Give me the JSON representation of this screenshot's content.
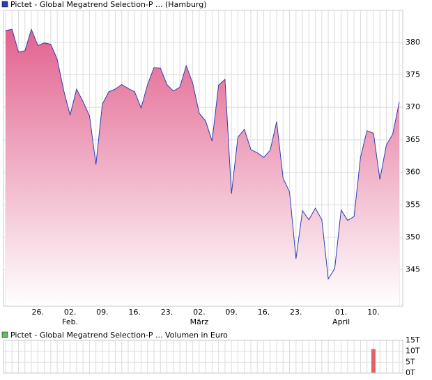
{
  "chart_data": [
    {
      "type": "area",
      "legend": "Pictet - Global Megatrend Selection-P ... (Hamburg)",
      "color": "#2b3fb5",
      "fill_top": "#e2628f",
      "fill_bottom": "#ffffff",
      "categories": [
        null,
        null,
        null,
        null,
        null,
        "26.",
        null,
        null,
        null,
        null,
        "02.",
        null,
        null,
        null,
        null,
        "09.",
        null,
        null,
        null,
        null,
        "16.",
        null,
        null,
        null,
        null,
        "23.",
        null,
        null,
        null,
        null,
        "02.",
        null,
        null,
        null,
        null,
        "09.",
        null,
        null,
        null,
        null,
        "16.",
        null,
        null,
        null,
        null,
        "23.",
        null,
        null,
        null,
        null,
        null,
        null,
        "01.",
        null,
        null,
        null,
        null,
        "10.",
        null,
        null,
        null,
        null
      ],
      "months": [
        null,
        null,
        null,
        null,
        null,
        null,
        null,
        null,
        null,
        null,
        "Feb.",
        null,
        null,
        null,
        null,
        null,
        null,
        null,
        null,
        null,
        null,
        null,
        null,
        null,
        null,
        null,
        null,
        null,
        null,
        null,
        "März",
        null,
        null,
        null,
        null,
        null,
        null,
        null,
        null,
        null,
        null,
        null,
        null,
        null,
        null,
        null,
        null,
        null,
        null,
        null,
        null,
        null,
        "April",
        null,
        null,
        null,
        null,
        null,
        null,
        null,
        null,
        null
      ],
      "values": [
        381.8,
        382,
        378.5,
        378.7,
        382,
        379.5,
        379.9,
        379.7,
        377.4,
        372.6,
        368.8,
        372.8,
        370.9,
        368.7,
        361.2,
        370.5,
        372.4,
        372.8,
        373.5,
        372.9,
        372.4,
        369.9,
        373.5,
        376.1,
        376,
        373.5,
        372.5,
        373.1,
        376.4,
        373.7,
        369.1,
        367.9,
        364.8,
        373.4,
        374.3,
        356.7,
        365.4,
        366.6,
        363.5,
        363,
        362.3,
        363.4,
        367.8,
        359.1,
        357,
        346.7,
        354.1,
        352.7,
        354.5,
        352.7,
        343.6,
        345.2,
        354.2,
        352.6,
        353.2,
        362.3,
        366.4,
        366,
        358.9,
        364.2,
        365.9,
        370.8
      ],
      "ylim": [
        339.4,
        384.9
      ],
      "yticks": [
        345,
        350,
        355,
        360,
        365,
        370,
        375,
        380
      ],
      "grid": true
    },
    {
      "type": "bar",
      "legend": "Pictet - Global Megatrend Selection-P ... Volumen in Euro",
      "legend_color": "#66bb66",
      "color": "#e06464",
      "values": [
        null,
        null,
        null,
        null,
        null,
        null,
        null,
        null,
        null,
        null,
        null,
        null,
        null,
        null,
        null,
        null,
        null,
        null,
        null,
        null,
        null,
        null,
        null,
        null,
        null,
        null,
        null,
        null,
        null,
        null,
        null,
        null,
        null,
        null,
        null,
        null,
        null,
        null,
        null,
        null,
        null,
        null,
        null,
        null,
        null,
        null,
        null,
        null,
        null,
        null,
        null,
        null,
        null,
        null,
        null,
        null,
        null,
        11,
        null,
        null,
        null,
        null
      ],
      "ylim": [
        0,
        15
      ],
      "yticks": [
        {
          "value": 0,
          "label": "0T"
        },
        {
          "value": 5,
          "label": "5T"
        },
        {
          "value": 10,
          "label": "10T"
        },
        {
          "value": 15,
          "label": "15T"
        }
      ],
      "grid": true
    }
  ]
}
